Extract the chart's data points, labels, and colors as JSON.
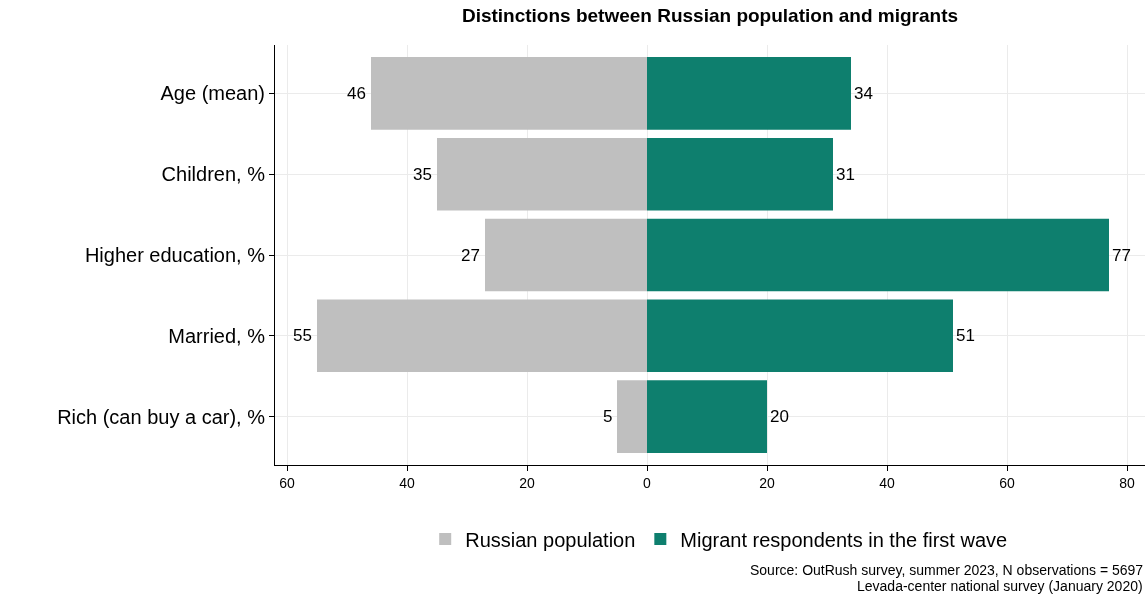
{
  "chart_data": {
    "type": "bar",
    "orientation": "horizontal",
    "title": "Distinctions between Russian population and migrants",
    "categories": [
      "Age (mean)",
      "Children, %",
      "Higher education, %",
      "Married, %",
      "Rich (can buy a car), %"
    ],
    "series": [
      {
        "name": "Russian population",
        "color": "#bfbfbf",
        "values": [
          46,
          35,
          27,
          55,
          5
        ],
        "base": [
          -46,
          -35,
          -27,
          -55,
          -5
        ],
        "value_labels": [
          "46",
          "35",
          "27",
          "55",
          "5"
        ]
      },
      {
        "name": "Migrant respondents in the first wave",
        "color": "#0e7f6e",
        "values": [
          34,
          31,
          77,
          51,
          20
        ],
        "value_labels": [
          "34",
          "31",
          "77",
          "51",
          "20"
        ]
      }
    ],
    "xlim": [
      -62,
      83
    ],
    "xticks": [
      {
        "value": -60,
        "label": "60"
      },
      {
        "value": -40,
        "label": "40"
      },
      {
        "value": -20,
        "label": "20"
      },
      0,
      20,
      40,
      60,
      80
    ],
    "grid": true,
    "legend": "bottom",
    "annotations": [
      "Source: OutRush survey, summer 2023, N observations = 5697",
      "Levada-center national survey (January 2020)"
    ]
  }
}
